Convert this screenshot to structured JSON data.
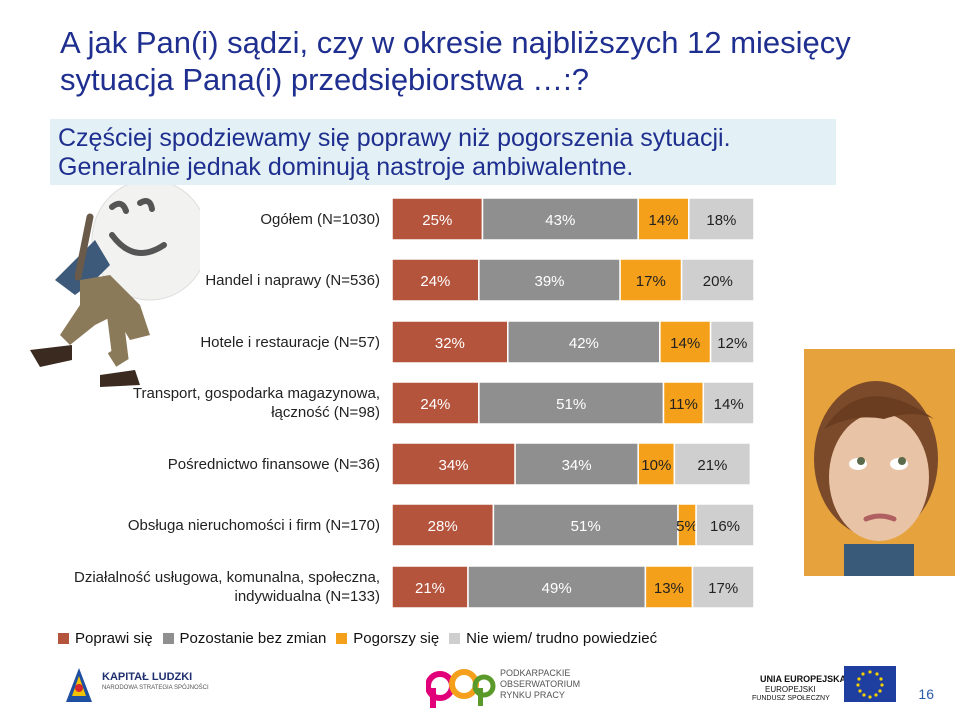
{
  "title": "A jak Pan(i) sądzi, czy w okresie najbliższych 12 miesięcy sytuacja Pana(i) przedsiębiorstwa …:?",
  "subtitle": "Częściej spodziewamy się poprawy niż pogorszenia sytuacji. Generalnie jednak dominują nastroje ambiwalentne.",
  "colors": {
    "poprawi": "#b5543d",
    "pozostanie": "#8f8f8f",
    "pogorszy": "#f5a01a",
    "nie_wiem": "#cfcfcf",
    "title": "#1f2f8f"
  },
  "chart_data": {
    "type": "bar",
    "orientation": "horizontal",
    "stacked": true,
    "percent_stacked": true,
    "categories": [
      "Ogółem (N=1030)",
      "Handel i naprawy (N=536)",
      "Hotele i restauracje (N=57)",
      "Transport, gospodarka magazynowa, łączność (N=98)",
      "Pośrednictwo finansowe (N=36)",
      "Obsługa nieruchomości i firm (N=170)",
      "Działalność usługowa, komunalna, społeczna, indywidualna (N=133)"
    ],
    "category_lines": [
      [
        "Ogółem (N=1030)"
      ],
      [
        "Handel i naprawy (N=536)"
      ],
      [
        "Hotele i restauracje (N=57)"
      ],
      [
        "Transport, gospodarka magazynowa,",
        "łączność (N=98)"
      ],
      [
        "Pośrednictwo finansowe (N=36)"
      ],
      [
        "Obsługa nieruchomości i firm (N=170)"
      ],
      [
        "Działalność usługowa, komunalna, społeczna,",
        "indywidualna (N=133)"
      ]
    ],
    "series": [
      {
        "name": "Poprawi się",
        "color": "#b5543d",
        "values": [
          25,
          24,
          32,
          24,
          34,
          28,
          21
        ]
      },
      {
        "name": "Pozostanie bez zmian",
        "color": "#8f8f8f",
        "values": [
          43,
          39,
          42,
          51,
          34,
          51,
          49
        ]
      },
      {
        "name": "Pogorszy się",
        "color": "#f5a01a",
        "values": [
          14,
          17,
          14,
          11,
          10,
          5,
          13
        ]
      },
      {
        "name": "Nie wiem/ trudno powiedzieć",
        "color": "#cfcfcf",
        "values": [
          18,
          20,
          12,
          14,
          21,
          16,
          17
        ]
      }
    ],
    "value_labels": [
      [
        "25%",
        "43%",
        "14%",
        "18%"
      ],
      [
        "24%",
        "39%",
        "17%",
        "20%"
      ],
      [
        "32%",
        "42%",
        "14%",
        "12%"
      ],
      [
        "24%",
        "51%",
        "11%",
        "14%"
      ],
      [
        "34%",
        "34%",
        "10%",
        "21%"
      ],
      [
        "28%",
        "51%",
        "5%",
        "16%"
      ],
      [
        "21%",
        "49%",
        "13%",
        "17%"
      ]
    ],
    "xlim": [
      0,
      100
    ],
    "legend_position": "bottom"
  },
  "legend": [
    {
      "label": "Poprawi się",
      "color": "#b5543d"
    },
    {
      "label": "Pozostanie bez zmian",
      "color": "#8f8f8f"
    },
    {
      "label": "Pogorszy się",
      "color": "#f5a01a"
    },
    {
      "label": "Nie wiem/ trudno powiedzieć",
      "color": "#cfcfcf"
    }
  ],
  "footer": {
    "kapital": "KAPITAŁ LUDZKI",
    "kapital_sub": "NARODOWA STRATEGIA SPÓJNOŚCI",
    "obs_line1": "PODKARPACKIE",
    "obs_line2": "OBSERWATORIUM",
    "obs_line3": "RYNKU PRACY",
    "ue_line1": "UNIA EUROPEJSKA",
    "ue_line2": "EUROPEJSKI",
    "ue_line3": "FUNDUSZ SPOŁECZNY",
    "page_number": "16"
  }
}
